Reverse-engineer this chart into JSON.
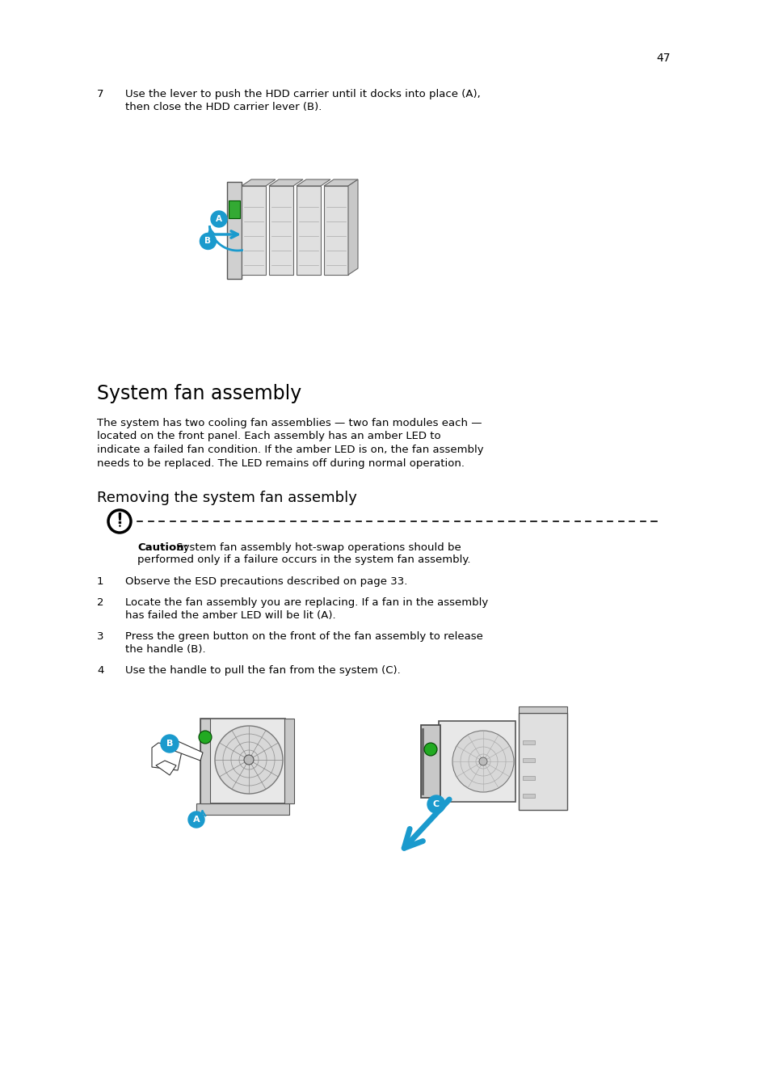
{
  "background_color": "#ffffff",
  "page_number": "47",
  "step7_number": "7",
  "step7_text_line1": "Use the lever to push the HDD carrier until it docks into place (A),",
  "step7_text_line2": "then close the HDD carrier lever (B).",
  "section_title": "System fan assembly",
  "section_body_lines": [
    "The system has two cooling fan assemblies — two fan modules each —",
    "located on the front panel. Each assembly has an amber LED to",
    "indicate a failed fan condition. If the amber LED is on, the fan assembly",
    "needs to be replaced. The LED remains off during normal operation."
  ],
  "subsection_title": "Removing the system fan assembly",
  "caution_bold": "Caution:",
  "caution_rest": " System fan assembly hot-swap operations should be",
  "caution_rest2": "performed only if a failure occurs in the system fan assembly.",
  "steps": [
    {
      "num": "1",
      "lines": [
        "Observe the ESD precautions described on page 33."
      ]
    },
    {
      "num": "2",
      "lines": [
        "Locate the fan assembly you are replacing. If a fan in the assembly",
        "has failed the amber LED will be lit (A)."
      ]
    },
    {
      "num": "3",
      "lines": [
        "Press the green button on the front of the fan assembly to release",
        "the handle (B)."
      ]
    },
    {
      "num": "4",
      "lines": [
        "Use the handle to pull the fan from the system (C)."
      ]
    }
  ],
  "body_fontsize": 9.5,
  "step_fontsize": 9.5,
  "section_title_fontsize": 17,
  "subsection_title_fontsize": 13,
  "page_num_fontsize": 10,
  "bold_parts_step2": "(A)",
  "bold_parts_step3": "(B)",
  "bold_parts_step4": "(C)"
}
